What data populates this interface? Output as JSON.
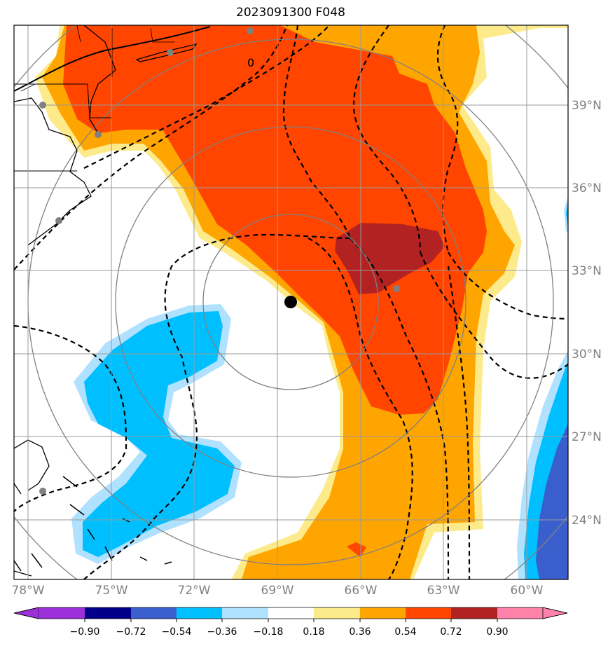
{
  "title": "2023091300 F048",
  "map": {
    "longitude_labels": [
      "78°W",
      "75°W",
      "72°W",
      "69°W",
      "66°W",
      "63°W",
      "60°W"
    ],
    "latitude_labels": [
      "39°N",
      "36°N",
      "33°N",
      "30°N",
      "27°N",
      "24°N"
    ],
    "contour_label": "0",
    "storm_center_lon": -68.5,
    "storm_center_lat": 31.8
  },
  "colorbar": {
    "tick_labels": [
      "−0.90",
      "−0.72",
      "−0.54",
      "−0.36",
      "−0.18",
      "0.18",
      "0.36",
      "0.54",
      "0.72",
      "0.90"
    ],
    "colors": [
      "#9b30d9",
      "#00008b",
      "#3a5fcd",
      "#00bfff",
      "#b0e2ff",
      "#ffffff",
      "#fdeb8b",
      "#ffa500",
      "#ff4500",
      "#b22222",
      "#ff82ab"
    ]
  },
  "palette": {
    "deep_red": "#b22222",
    "red_orange": "#ff4500",
    "orange": "#ffa500",
    "light_yellow": "#fdeb8b",
    "light_blue": "#b0e2ff",
    "cyan": "#00bfff",
    "royal_blue": "#3a5fcd",
    "gridline": "#9a9a9a",
    "ring": "#808080"
  }
}
